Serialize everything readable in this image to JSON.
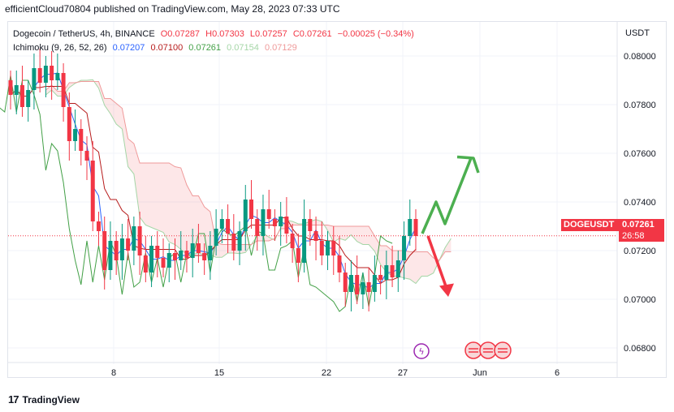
{
  "header": {
    "publish_line": "efficientCloud70804 published on TradingView.com, May 28, 2023 07:33 UTC"
  },
  "legend": {
    "symbol": "Dogecoin / TetherUS, 4h, BINANCE",
    "ohlc": {
      "open": "O0.07287",
      "high": "H0.07303",
      "low": "L0.07257",
      "close": "C0.07261",
      "change": "−0.00025 (−0.34%)"
    },
    "indicator_name": "Ichimoku (9, 26, 52, 26)",
    "indicator_values": [
      "0.07207",
      "0.07100",
      "0.07261",
      "0.07154",
      "0.07129"
    ],
    "indicator_colors": [
      "#2962ff",
      "#b71c1c",
      "#43a047",
      "#a5d6a7",
      "#ef9a9a"
    ]
  },
  "price_label": {
    "ticker": "DOGEUSDT",
    "price": "0.07261",
    "countdown": "26:58",
    "color": "#f23645"
  },
  "footer": {
    "brand": "TradingView"
  },
  "colors": {
    "up": "#089981",
    "down": "#f23645",
    "arrow_up": "#4caf50",
    "arrow_down": "#f23645"
  },
  "chart_data": {
    "type": "candlestick",
    "y_unit": "USDT",
    "ylim": [
      0.0668,
      0.0814
    ],
    "y_ticks": [
      "0.08000",
      "0.07800",
      "0.07600",
      "0.07400",
      "0.07200",
      "0.07000",
      "0.06800"
    ],
    "x_ticks": [
      "8",
      "15",
      "22",
      "27",
      "Jun",
      "6"
    ],
    "last_price": 0.07261,
    "price_path": [
      [
        0.079,
        0.0784
      ],
      [
        0.0784,
        0.0788
      ],
      [
        0.0788,
        0.0779
      ],
      [
        0.0779,
        0.0786
      ],
      [
        0.0786,
        0.0795
      ],
      [
        0.0795,
        0.0789
      ],
      [
        0.0789,
        0.0796
      ],
      [
        0.0796,
        0.079
      ],
      [
        0.079,
        0.0793
      ],
      [
        0.0793,
        0.0779
      ],
      [
        0.0779,
        0.0765
      ],
      [
        0.0765,
        0.077
      ],
      [
        0.077,
        0.0761
      ],
      [
        0.0761,
        0.0757
      ],
      [
        0.0757,
        0.0732
      ],
      [
        0.0732,
        0.0728
      ],
      [
        0.0728,
        0.0712
      ],
      [
        0.0712,
        0.0724
      ],
      [
        0.0724,
        0.0716
      ],
      [
        0.0716,
        0.0725
      ],
      [
        0.0725,
        0.072
      ],
      [
        0.072,
        0.073
      ],
      [
        0.073,
        0.0718
      ],
      [
        0.0718,
        0.0711
      ],
      [
        0.0711,
        0.0722
      ],
      [
        0.0722,
        0.0717
      ],
      [
        0.0717,
        0.0713
      ],
      [
        0.0713,
        0.0719
      ],
      [
        0.0719,
        0.0716
      ],
      [
        0.0716,
        0.072
      ],
      [
        0.072,
        0.0717
      ],
      [
        0.0717,
        0.0723
      ],
      [
        0.0723,
        0.0719
      ],
      [
        0.0719,
        0.0716
      ],
      [
        0.0716,
        0.0722
      ],
      [
        0.0722,
        0.0729
      ],
      [
        0.0729,
        0.0733
      ],
      [
        0.0733,
        0.0727
      ],
      [
        0.0727,
        0.072
      ],
      [
        0.072,
        0.0728
      ],
      [
        0.0728,
        0.0741
      ],
      [
        0.0741,
        0.0733
      ],
      [
        0.0733,
        0.0726
      ],
      [
        0.0726,
        0.0737
      ],
      [
        0.0737,
        0.0733
      ],
      [
        0.0733,
        0.073
      ],
      [
        0.073,
        0.0734
      ],
      [
        0.0734,
        0.0727
      ],
      [
        0.0727,
        0.0721
      ],
      [
        0.0721,
        0.0715
      ],
      [
        0.0715,
        0.0733
      ],
      [
        0.0733,
        0.0728
      ],
      [
        0.0728,
        0.0724
      ],
      [
        0.0724,
        0.0718
      ],
      [
        0.0718,
        0.0724
      ],
      [
        0.0724,
        0.0718
      ],
      [
        0.0718,
        0.0711
      ],
      [
        0.0711,
        0.0703
      ],
      [
        0.0703,
        0.071
      ],
      [
        0.071,
        0.0702
      ],
      [
        0.0702,
        0.0707
      ],
      [
        0.0707,
        0.0703
      ],
      [
        0.0703,
        0.071
      ],
      [
        0.071,
        0.0708
      ],
      [
        0.0708,
        0.0714
      ],
      [
        0.0714,
        0.0709
      ],
      [
        0.0709,
        0.0716
      ],
      [
        0.0716,
        0.0726
      ],
      [
        0.0726,
        0.0733
      ],
      [
        0.0733,
        0.0726
      ]
    ],
    "projection": {
      "up_path": [
        [
          0.0727,
          0.074
        ],
        [
          0.0731,
          0.0758
        ],
        [
          0.0752
        ]
      ],
      "down_path": [
        [
          0.0726,
          0.0702
        ]
      ]
    }
  }
}
